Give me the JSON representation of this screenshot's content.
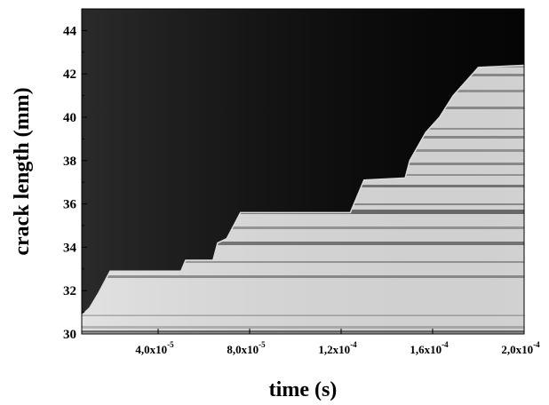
{
  "chart_data": {
    "type": "area",
    "x_label": "time (s)",
    "y_label": "crack length (mm)",
    "x": [
      7e-06,
      1e-05,
      1.4e-05,
      1.9e-05,
      5e-05,
      5.2e-05,
      6.4e-05,
      6.6e-05,
      7e-05,
      7.6e-05,
      0.000124,
      0.00013,
      0.000148,
      0.00015,
      0.000157,
      0.000163,
      0.000169,
      0.00018,
      0.0002
    ],
    "values": [
      30.9,
      31.2,
      31.9,
      32.9,
      32.9,
      33.4,
      33.4,
      34.2,
      34.4,
      35.6,
      35.6,
      37.1,
      37.2,
      38.0,
      39.3,
      40.0,
      41.0,
      42.3,
      42.4
    ],
    "color": "#dcdcdc",
    "background": "#050505",
    "xlim": [
      6.6e-06,
      0.0002
    ],
    "ylim": [
      30,
      45
    ],
    "xticks": [
      {
        "value": 4e-05,
        "label": "4,0x10",
        "exponent": "-5"
      },
      {
        "value": 8e-05,
        "label": "8,0x10",
        "exponent": "-5"
      },
      {
        "value": 0.00012,
        "label": "1,2x10",
        "exponent": "-4"
      },
      {
        "value": 0.00016,
        "label": "1,6x10",
        "exponent": "-4"
      },
      {
        "value": 0.0002,
        "label": "2,0x10",
        "exponent": "-4"
      }
    ],
    "yticks": [
      30,
      32,
      34,
      36,
      38,
      40,
      42,
      44
    ]
  }
}
